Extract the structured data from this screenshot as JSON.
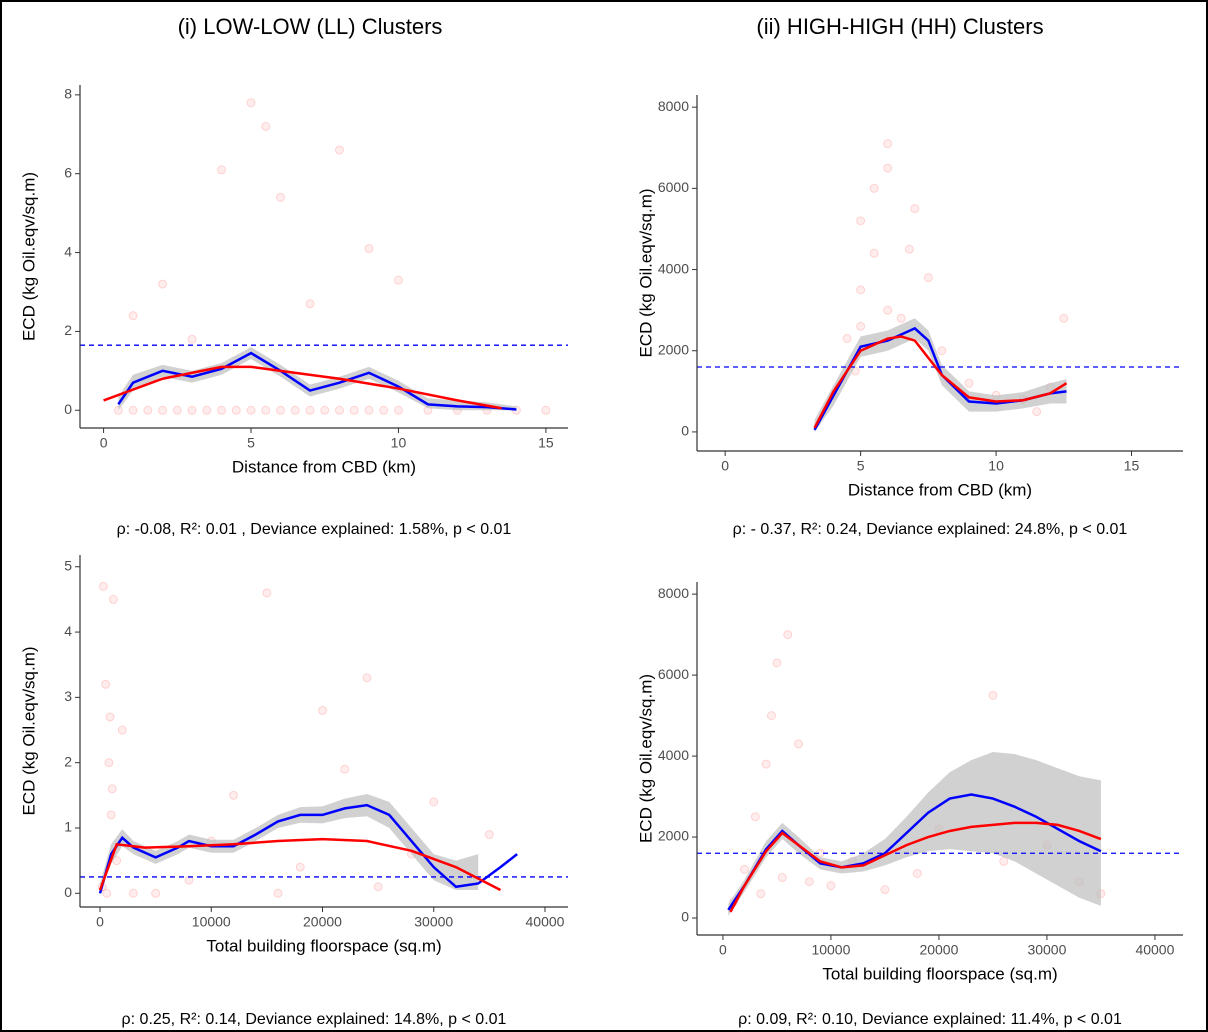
{
  "columns": [
    "(i) LOW-LOW (LL) Clusters",
    "(ii) HIGH-HIGH (HH) Clusters"
  ],
  "chart_data": [
    {
      "type": "scatter",
      "xlabel": "Distance from CBD (km)",
      "ylabel": "ECD (kg Oil.eqv/sq.m)",
      "caption": "ρ: -0.08, R²: 0.01 , Deviance explained: 1.58%, p < 0.01",
      "xlim": [
        -0.8,
        15.75
      ],
      "ylim": [
        -0.45,
        8.25
      ],
      "xticks": [
        0,
        5,
        10,
        15
      ],
      "yticks": [
        0,
        2,
        4,
        6,
        8
      ],
      "reference_line": {
        "value": 1.65,
        "color": "#0000ff"
      },
      "points": {
        "color": "#ff0000",
        "x": [
          0.5,
          1,
          1.5,
          2,
          2.5,
          3,
          3.5,
          4,
          4.5,
          5,
          5.5,
          6,
          6.5,
          7,
          7.5,
          8,
          8.5,
          9,
          9.5,
          10,
          11,
          12,
          13,
          14,
          15,
          2,
          4,
          5,
          6,
          7,
          9,
          3,
          8,
          10,
          5.5,
          1
        ],
        "y": [
          0,
          0,
          0,
          0,
          0,
          0,
          0,
          0,
          0,
          0,
          0,
          0,
          0,
          0,
          0,
          0,
          0,
          0,
          0,
          0,
          0,
          0,
          0,
          0,
          0,
          3.2,
          6.1,
          7.8,
          5.4,
          2.7,
          4.1,
          1.8,
          6.6,
          3.3,
          7.2,
          2.4
        ]
      },
      "band": {
        "color": "#bebebe",
        "x": [
          0.5,
          1,
          2,
          3,
          4,
          5,
          6,
          7,
          8,
          9,
          10,
          11,
          12,
          13,
          14
        ],
        "lower": [
          0,
          0.5,
          0.85,
          0.7,
          0.9,
          1.3,
          0.85,
          0.35,
          0.55,
          0.8,
          0.45,
          0.05,
          0,
          0,
          0
        ],
        "upper": [
          0.35,
          0.9,
          1.15,
          1.0,
          1.2,
          1.6,
          1.15,
          0.65,
          0.85,
          1.1,
          0.75,
          0.3,
          0.25,
          0.2,
          0.1
        ]
      },
      "series": [
        {
          "color": "#0000ff",
          "x": [
            0.5,
            1,
            2,
            3,
            4,
            5,
            6,
            7,
            8,
            9,
            10,
            11,
            12,
            13,
            14
          ],
          "values": [
            0.15,
            0.7,
            1.0,
            0.85,
            1.05,
            1.45,
            1.0,
            0.5,
            0.7,
            0.95,
            0.6,
            0.15,
            0.1,
            0.08,
            0.02
          ]
        },
        {
          "color": "#ff0000",
          "x": [
            0,
            2,
            4,
            5,
            6,
            8,
            10,
            12,
            13.5
          ],
          "values": [
            0.25,
            0.8,
            1.1,
            1.1,
            1.0,
            0.8,
            0.55,
            0.25,
            0.05
          ]
        }
      ]
    },
    {
      "type": "scatter",
      "xlabel": "Distance from CBD (km)",
      "ylabel": "ECD (kg Oil.eqv/sq.m)",
      "caption": "ρ: - 0.37, R²: 0.24, Deviance explained: 24.8%, p < 0.01",
      "xlim": [
        -1.04,
        16.9
      ],
      "ylim": [
        -470,
        8300
      ],
      "xticks": [
        0,
        5,
        10,
        15
      ],
      "yticks": [
        0,
        2000,
        4000,
        6000,
        8000
      ],
      "reference_line": {
        "value": 1600,
        "color": "#0000ff"
      },
      "points": {
        "color": "#ff0000",
        "x": [
          4,
          4.5,
          5,
          5,
          5.5,
          5.5,
          6,
          6,
          6.5,
          7,
          7.5,
          8,
          9,
          10,
          11,
          12,
          12.5,
          5,
          6,
          4.8,
          6.8,
          11.5
        ],
        "y": [
          900,
          2300,
          3500,
          5200,
          4400,
          6000,
          3000,
          6500,
          2800,
          5500,
          3800,
          2000,
          1200,
          900,
          800,
          1100,
          2800,
          2600,
          7100,
          1500,
          4500,
          500
        ]
      },
      "band": {
        "color": "#bebebe",
        "x": [
          3.3,
          4,
          5,
          6,
          6.5,
          7,
          7.5,
          8,
          9,
          10,
          11,
          12,
          12.6
        ],
        "lower": [
          0,
          650,
          1850,
          2000,
          2150,
          2300,
          2000,
          1150,
          500,
          500,
          580,
          700,
          700
        ],
        "upper": [
          300,
          1150,
          2350,
          2500,
          2650,
          2800,
          2500,
          1650,
          1000,
          900,
          980,
          1200,
          1300
        ]
      },
      "series": [
        {
          "color": "#0000ff",
          "x": [
            3.3,
            4,
            5,
            6,
            6.5,
            7,
            7.5,
            8,
            9,
            10,
            11,
            12,
            12.6
          ],
          "values": [
            50,
            900,
            2100,
            2250,
            2400,
            2550,
            2250,
            1400,
            750,
            700,
            780,
            950,
            1000
          ]
        },
        {
          "color": "#ff0000",
          "x": [
            3.3,
            4,
            5,
            6,
            6.5,
            7,
            8,
            9,
            10,
            11,
            12,
            12.6
          ],
          "values": [
            100,
            1000,
            2000,
            2300,
            2350,
            2250,
            1400,
            850,
            750,
            780,
            950,
            1200
          ]
        }
      ]
    },
    {
      "type": "scatter",
      "xlabel": "Total building floorspace (sq.m)",
      "ylabel": "ECD (kg Oil.eqv/sq.m)",
      "caption": "ρ: 0.25, R²: 0.14, Deviance explained: 14.8%, p < 0.01",
      "xlim": [
        -1800,
        42070
      ],
      "ylim": [
        -0.21,
        5.18
      ],
      "xticks": [
        0,
        10000,
        20000,
        30000,
        40000
      ],
      "yticks": [
        0,
        1,
        2,
        3,
        4,
        5
      ],
      "reference_line": {
        "value": 0.25,
        "color": "#0000ff"
      },
      "points": {
        "color": "#ff0000",
        "x": [
          200,
          300,
          500,
          800,
          1000,
          1200,
          1500,
          2000,
          3000,
          5000,
          8000,
          12000,
          15000,
          18000,
          20000,
          22000,
          25000,
          28000,
          30000,
          35000,
          600,
          900,
          1100,
          16000,
          24000,
          10000
        ],
        "y": [
          0.1,
          4.7,
          3.2,
          2.0,
          1.2,
          4.5,
          0.5,
          2.5,
          0,
          0,
          0.2,
          1.5,
          4.6,
          0.4,
          2.8,
          1.9,
          0.1,
          0.6,
          1.4,
          0.9,
          0,
          2.7,
          1.6,
          0,
          3.3,
          0.8
        ]
      },
      "band": {
        "color": "#bebebe",
        "x": [
          0,
          1000,
          2000,
          3000,
          5000,
          7000,
          8000,
          10000,
          12000,
          14000,
          16000,
          18000,
          20000,
          22000,
          24000,
          26000,
          28000,
          30000,
          32000,
          34000
        ],
        "lower": [
          0,
          0.45,
          0.72,
          0.6,
          0.45,
          0.6,
          0.7,
          0.62,
          0.62,
          0.8,
          1.0,
          1.08,
          1.07,
          1.15,
          1.18,
          1.0,
          0.6,
          0.2,
          0.05,
          0.05
        ],
        "upper": [
          0.15,
          0.75,
          0.98,
          0.8,
          0.65,
          0.8,
          0.9,
          0.82,
          0.82,
          1.0,
          1.2,
          1.32,
          1.33,
          1.45,
          1.52,
          1.4,
          1.0,
          0.6,
          0.5,
          0.6
        ]
      },
      "series": [
        {
          "color": "#0000ff",
          "x": [
            0,
            1000,
            2000,
            3000,
            5000,
            7000,
            8000,
            10000,
            12000,
            14000,
            16000,
            18000,
            20000,
            22000,
            24000,
            26000,
            28000,
            30000,
            32000,
            34000,
            36000,
            37500
          ],
          "values": [
            0,
            0.6,
            0.85,
            0.7,
            0.55,
            0.7,
            0.8,
            0.72,
            0.72,
            0.9,
            1.1,
            1.2,
            1.2,
            1.3,
            1.35,
            1.2,
            0.8,
            0.4,
            0.1,
            0.15,
            0.4,
            0.6
          ]
        },
        {
          "color": "#ff0000",
          "x": [
            0,
            1500,
            4000,
            8000,
            12000,
            16000,
            20000,
            24000,
            28000,
            32000,
            36000
          ],
          "values": [
            0.05,
            0.75,
            0.7,
            0.72,
            0.75,
            0.8,
            0.83,
            0.8,
            0.65,
            0.4,
            0.05
          ]
        }
      ]
    },
    {
      "type": "scatter",
      "xlabel": "Total building floorspace (sq.m)",
      "ylabel": "ECD (kg Oil.eqv/sq.m)",
      "caption": "ρ: 0.09, R²: 0.10, Deviance explained: 11.4%, p < 0.01",
      "xlim": [
        -2400,
        42600
      ],
      "ylim": [
        -420,
        8300
      ],
      "xticks": [
        0,
        10000,
        20000,
        30000,
        40000
      ],
      "yticks": [
        0,
        2000,
        4000,
        6000,
        8000
      ],
      "reference_line": {
        "value": 1600,
        "color": "#0000ff"
      },
      "points": {
        "color": "#ff0000",
        "x": [
          1000,
          2000,
          3000,
          4000,
          4500,
          5000,
          6000,
          7000,
          8000,
          10000,
          12000,
          15000,
          20000,
          25000,
          30000,
          33000,
          35000,
          5500,
          3500,
          9000,
          18000,
          26000
        ],
        "y": [
          400,
          1200,
          2500,
          3800,
          5000,
          6300,
          7000,
          4300,
          900,
          800,
          1400,
          700,
          2200,
          5500,
          1800,
          900,
          600,
          1000,
          600,
          1600,
          1100,
          1400
        ]
      },
      "band": {
        "color": "#bebebe",
        "x": [
          500,
          2000,
          4000,
          5500,
          7000,
          9000,
          11000,
          13000,
          15000,
          17000,
          19000,
          21000,
          23000,
          25000,
          27000,
          29000,
          31000,
          33000,
          35000
        ],
        "lower": [
          50,
          650,
          1500,
          1950,
          1600,
          1200,
          1100,
          1150,
          1300,
          1500,
          1650,
          1700,
          1650,
          1600,
          1400,
          1100,
          800,
          500,
          300
        ],
        "upper": [
          350,
          950,
          1900,
          2350,
          2000,
          1500,
          1400,
          1600,
          1950,
          2500,
          3100,
          3600,
          3900,
          4100,
          4050,
          3900,
          3700,
          3500,
          3400
        ]
      },
      "series": [
        {
          "color": "#0000ff",
          "x": [
            500,
            2000,
            4000,
            5500,
            7000,
            9000,
            11000,
            13000,
            15000,
            17000,
            19000,
            21000,
            23000,
            25000,
            27000,
            29000,
            31000,
            33000,
            35000
          ],
          "values": [
            200,
            800,
            1700,
            2150,
            1800,
            1350,
            1250,
            1350,
            1600,
            2100,
            2600,
            2950,
            3050,
            2950,
            2750,
            2500,
            2200,
            1900,
            1650
          ]
        },
        {
          "color": "#ff0000",
          "x": [
            700,
            2000,
            4000,
            5500,
            7000,
            9000,
            11000,
            13000,
            15000,
            17000,
            19000,
            21000,
            23000,
            25000,
            27000,
            29000,
            31000,
            33000,
            35000
          ],
          "values": [
            150,
            800,
            1650,
            2100,
            1800,
            1400,
            1250,
            1300,
            1550,
            1800,
            2000,
            2150,
            2250,
            2300,
            2350,
            2350,
            2300,
            2150,
            1950
          ]
        }
      ]
    }
  ]
}
